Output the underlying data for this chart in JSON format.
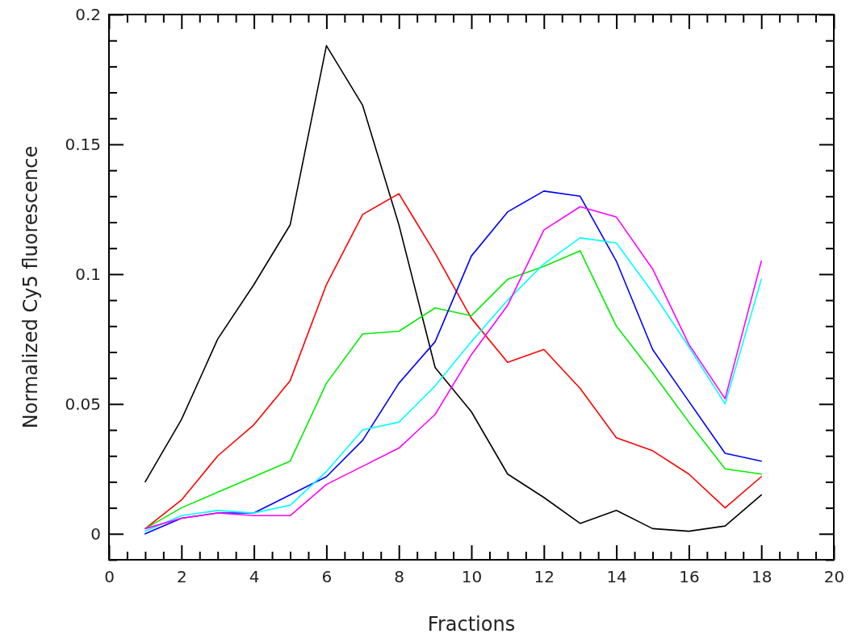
{
  "chart_data": {
    "type": "line",
    "xlabel": "Fractions",
    "ylabel": "Normalized Cy5 fluorescence",
    "x": [
      1,
      2,
      3,
      4,
      5,
      6,
      7,
      8,
      9,
      10,
      11,
      12,
      13,
      14,
      15,
      16,
      17,
      18
    ],
    "series": [
      {
        "color": "#000000",
        "values": [
          0.02,
          0.044,
          0.075,
          0.096,
          0.119,
          0.188,
          0.165,
          0.119,
          0.064,
          0.047,
          0.023,
          0.014,
          0.004,
          0.009,
          0.002,
          0.001,
          0.003,
          0.015
        ]
      },
      {
        "color": "#ff0000",
        "values": [
          0.002,
          0.013,
          0.03,
          0.042,
          0.059,
          0.096,
          0.123,
          0.131,
          0.108,
          0.083,
          0.066,
          0.071,
          0.056,
          0.037,
          0.032,
          0.023,
          0.01,
          0.022
        ]
      },
      {
        "color": "#00ee00",
        "values": [
          0.002,
          0.01,
          0.016,
          0.022,
          0.028,
          0.058,
          0.077,
          0.078,
          0.087,
          0.084,
          0.098,
          0.103,
          0.109,
          0.08,
          0.062,
          0.043,
          0.025,
          0.023
        ]
      },
      {
        "color": "#0000ff",
        "values": [
          0.0,
          0.006,
          0.008,
          0.008,
          0.015,
          0.022,
          0.036,
          0.058,
          0.074,
          0.107,
          0.124,
          0.132,
          0.13,
          0.105,
          0.071,
          0.051,
          0.031,
          0.028
        ]
      },
      {
        "color": "#00ffff",
        "values": [
          0.001,
          0.007,
          0.009,
          0.008,
          0.011,
          0.024,
          0.04,
          0.043,
          0.057,
          0.074,
          0.09,
          0.104,
          0.114,
          0.112,
          0.093,
          0.072,
          0.05,
          0.098
        ]
      },
      {
        "color": "#ff00ff",
        "values": [
          0.002,
          0.006,
          0.008,
          0.007,
          0.007,
          0.019,
          0.026,
          0.033,
          0.046,
          0.069,
          0.088,
          0.117,
          0.126,
          0.122,
          0.102,
          0.073,
          0.052,
          0.105
        ]
      }
    ],
    "xlim": [
      0,
      20
    ],
    "ylim": [
      -0.01,
      0.2
    ],
    "xticks": [
      0,
      {
        "value": 0.5,
        "label": null
      },
      {
        "value": 1,
        "label": null
      },
      {
        "value": 1.5,
        "label": null
      },
      2,
      {
        "value": 2.5,
        "label": null
      },
      {
        "value": 3,
        "label": null
      },
      {
        "value": 3.5,
        "label": null
      },
      4,
      {
        "value": 4.5,
        "label": null
      },
      {
        "value": 5,
        "label": null
      },
      {
        "value": 5.5,
        "label": null
      },
      6,
      {
        "value": 6.5,
        "label": null
      },
      {
        "value": 7,
        "label": null
      },
      {
        "value": 7.5,
        "label": null
      },
      8,
      {
        "value": 8.5,
        "label": null
      },
      {
        "value": 9,
        "label": null
      },
      {
        "value": 9.5,
        "label": null
      },
      10,
      {
        "value": 10.5,
        "label": null
      },
      {
        "value": 11,
        "label": null
      },
      {
        "value": 11.5,
        "label": null
      },
      12,
      {
        "value": 12.5,
        "label": null
      },
      {
        "value": 13,
        "label": null
      },
      {
        "value": 13.5,
        "label": null
      },
      14,
      {
        "value": 14.5,
        "label": null
      },
      {
        "value": 15,
        "label": null
      },
      {
        "value": 15.5,
        "label": null
      },
      16,
      {
        "value": 16.5,
        "label": null
      },
      {
        "value": 17,
        "label": null
      },
      {
        "value": 17.5,
        "label": null
      },
      18,
      {
        "value": 18.5,
        "label": null
      },
      {
        "value": 19,
        "label": null
      },
      {
        "value": 19.5,
        "label": null
      },
      20
    ],
    "yticks": [
      {
        "value": -0.01,
        "label": null
      },
      0,
      {
        "value": 0.01,
        "label": null
      },
      {
        "value": 0.02,
        "label": null
      },
      {
        "value": 0.03,
        "label": null
      },
      {
        "value": 0.04,
        "label": null
      },
      0.05,
      {
        "value": 0.06,
        "label": null
      },
      {
        "value": 0.07,
        "label": null
      },
      {
        "value": 0.08,
        "label": null
      },
      {
        "value": 0.09,
        "label": null
      },
      0.1,
      {
        "value": 0.11,
        "label": null
      },
      {
        "value": 0.12,
        "label": null
      },
      {
        "value": 0.13,
        "label": null
      },
      {
        "value": 0.14,
        "label": null
      },
      0.15,
      {
        "value": 0.16,
        "label": null
      },
      {
        "value": 0.17,
        "label": null
      },
      {
        "value": 0.18,
        "label": null
      },
      {
        "value": 0.19,
        "label": null
      },
      0.2
    ],
    "grid": false,
    "marker": "none",
    "line_style": "solid"
  }
}
